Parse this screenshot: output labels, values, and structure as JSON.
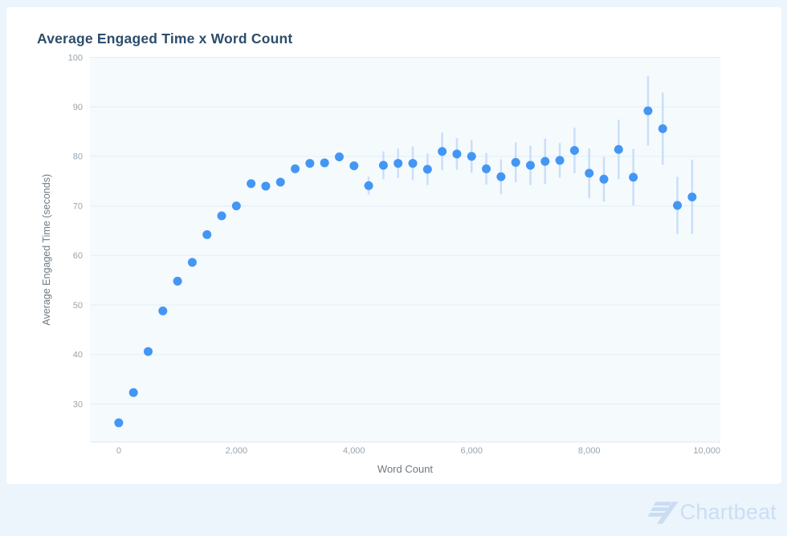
{
  "page": {
    "background_color": "#ecf5fc",
    "card_background_color": "#ffffff"
  },
  "header": {
    "title": "Average Engaged Time x Word Count",
    "title_color": "#2e4d6b"
  },
  "footer": {
    "brand": "Chartbeat",
    "brand_color": "#cbdef4",
    "icon_color": "#c9dcf2"
  },
  "chart_data": {
    "type": "scatter",
    "title": "Average Engaged Time x Word Count",
    "xlabel": "Word Count",
    "ylabel": "Average Engaged Time (seconds)",
    "x": [
      0,
      250,
      500,
      750,
      1000,
      1250,
      1500,
      1750,
      2000,
      2250,
      2500,
      2750,
      3000,
      3250,
      3500,
      3750,
      4000,
      4250,
      4500,
      4750,
      5000,
      5250,
      5500,
      5750,
      6000,
      6250,
      6500,
      6750,
      7000,
      7250,
      7500,
      7750,
      8000,
      8250,
      8500,
      8750,
      9000,
      9250,
      9500,
      9750
    ],
    "values": [
      26.2,
      32.3,
      40.6,
      48.8,
      54.8,
      58.6,
      64.2,
      68.0,
      70.0,
      74.5,
      74.0,
      74.8,
      77.5,
      78.6,
      78.7,
      79.9,
      78.1,
      74.1,
      78.2,
      78.6,
      78.6,
      77.4,
      81.0,
      80.5,
      80.0,
      77.5,
      75.9,
      78.8,
      78.2,
      79.0,
      79.2,
      81.2,
      76.6,
      75.4,
      81.4,
      75.8,
      89.2,
      85.6,
      70.1,
      71.8
    ],
    "errors": [
      0,
      0,
      0,
      0,
      0,
      0,
      0,
      0,
      0,
      0,
      0,
      0,
      0,
      0,
      0,
      0,
      0,
      1.8,
      2.8,
      3.0,
      3.4,
      3.2,
      3.8,
      3.2,
      3.3,
      3.2,
      3.5,
      4.0,
      4.0,
      4.6,
      3.5,
      4.6,
      5.0,
      4.5,
      6.0,
      5.7,
      7.0,
      7.3,
      5.8,
      7.5
    ],
    "x_ticks": [
      0,
      2000,
      4000,
      6000,
      8000,
      10000
    ],
    "x_tick_labels": [
      "0",
      "2,000",
      "4,000",
      "6,000",
      "8,000",
      "10,000"
    ],
    "y_ticks": [
      30,
      40,
      50,
      60,
      70,
      80,
      90,
      100
    ],
    "xlim": [
      -490,
      10230
    ],
    "ylim": [
      22.3,
      100
    ],
    "grid": "horizontal",
    "legend": "none",
    "point_color": "#4496f4",
    "error_bar_color": "#c9dff9",
    "plot_background_color": "#f5fafd",
    "gridline_color": "#e2eef7",
    "plot_bottom_border_color": "#dce9f2",
    "tick_label_color": "#98a4ad",
    "axis_label_color": "#6f7a82"
  }
}
